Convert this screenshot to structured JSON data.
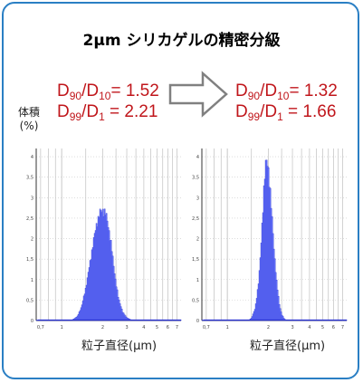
{
  "title": "2μm シリカゲルの精密分級",
  "ylabel": "体積\n(%)",
  "xlabel": "粒子直径(μm)",
  "before": {
    "d90_d10_label": "= 1.52",
    "d99_d1_label": " = 2.21"
  },
  "after": {
    "d90_d10_label": "= 1.32",
    "d99_d1_label": " = 1.66"
  },
  "chart_data": [
    {
      "type": "area",
      "name": "before",
      "xlabel": "粒子直径(μm)",
      "ylabel": "体積 (%)",
      "x_scale": "log",
      "xlim": [
        0.65,
        7.5
      ],
      "ylim": [
        0,
        4.2
      ],
      "grid": true,
      "yticks": [
        0,
        0.5,
        1,
        1.5,
        2,
        2.5,
        3,
        3.5,
        4
      ],
      "ytick_labels": [
        "0",
        "0,5",
        "1",
        "1,5",
        "2",
        "2,5",
        "3",
        "3,5",
        "4"
      ],
      "xticks": [
        0.7,
        1,
        2,
        3,
        4,
        5,
        6,
        7
      ],
      "xtick_labels": [
        "0,7",
        "1",
        "2",
        "3",
        "4",
        "5",
        "6",
        "7"
      ],
      "peak_x": 2.0,
      "peak_y": 2.7,
      "x": [
        1.2,
        1.3,
        1.4,
        1.5,
        1.6,
        1.7,
        1.8,
        1.9,
        2.0,
        2.1,
        2.2,
        2.3,
        2.4,
        2.5,
        2.6,
        2.8,
        3.0,
        3.2,
        3.5
      ],
      "values": [
        0.02,
        0.1,
        0.35,
        0.8,
        1.35,
        1.9,
        2.35,
        2.62,
        2.7,
        2.6,
        2.3,
        1.85,
        1.35,
        0.9,
        0.55,
        0.2,
        0.07,
        0.02,
        0.0
      ]
    },
    {
      "type": "area",
      "name": "after",
      "xlabel": "粒子直径(μm)",
      "ylabel": "体積 (%)",
      "x_scale": "log",
      "xlim": [
        0.65,
        7.5
      ],
      "ylim": [
        0,
        4.2
      ],
      "grid": true,
      "yticks": [
        0,
        0.5,
        1,
        1.5,
        2,
        2.5,
        3,
        3.5,
        4
      ],
      "ytick_labels": [
        "0",
        "0,5",
        "1",
        "1,5",
        "2",
        "2,5",
        "3",
        "3,5",
        "4"
      ],
      "xticks": [
        0.7,
        1,
        2,
        3,
        4,
        5,
        6,
        7
      ],
      "xtick_labels": [
        "0,7",
        "1",
        "2",
        "3",
        "4",
        "5",
        "6",
        "7"
      ],
      "peak_x": 1.95,
      "peak_y": 3.9,
      "x": [
        1.45,
        1.5,
        1.6,
        1.7,
        1.75,
        1.8,
        1.85,
        1.9,
        1.95,
        2.0,
        2.05,
        2.1,
        2.2,
        2.3,
        2.4,
        2.5,
        2.6,
        2.7
      ],
      "values": [
        0.02,
        0.06,
        0.3,
        1.0,
        1.6,
        2.4,
        3.2,
        3.75,
        3.9,
        3.7,
        3.25,
        2.7,
        1.7,
        0.9,
        0.4,
        0.15,
        0.05,
        0.0
      ]
    }
  ],
  "colors": {
    "border": "#2a7fc4",
    "formula": "#c0161b",
    "fill": "#6b78ff",
    "stroke": "#2a33d0",
    "grid": "#c8c8c8"
  }
}
